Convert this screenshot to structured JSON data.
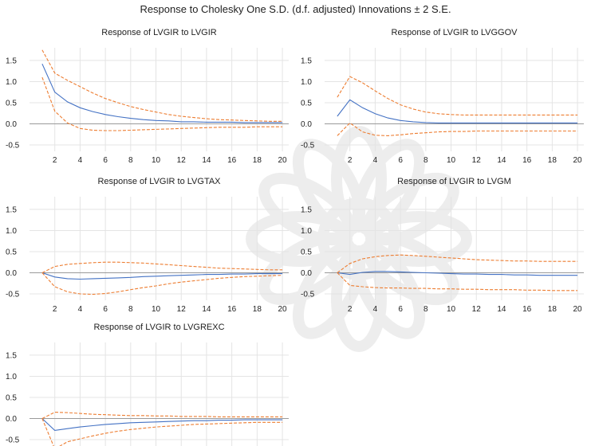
{
  "figure": {
    "title": "Response to Cholesky One S.D. (d.f. adjusted) Innovations ± 2 S.E."
  },
  "colors": {
    "response_line": "#4472c4",
    "band_line": "#ed7d31",
    "grid": "#e4e4e4",
    "zero_line": "#9a9a9a",
    "text": "#222222",
    "watermark": "#b0b0b0"
  },
  "icons": {
    "watermark": "arabesque-watermark-icon"
  },
  "chart_data": [
    {
      "type": "line",
      "title": "Response of LVGIR to LVGIR",
      "x": [
        1,
        2,
        3,
        4,
        5,
        6,
        7,
        8,
        9,
        10,
        11,
        12,
        13,
        14,
        15,
        16,
        17,
        18,
        19,
        20
      ],
      "xlim": [
        0,
        20.5
      ],
      "x_ticks": [
        "2",
        "4",
        "6",
        "8",
        "10",
        "12",
        "14",
        "16",
        "18",
        "20"
      ],
      "ylim": [
        -0.65,
        1.8
      ],
      "y_ticks": [
        "1.5",
        "1.0",
        "0.5",
        "0.0",
        "-0.5"
      ],
      "series": [
        {
          "role": "response",
          "values": [
            1.42,
            0.75,
            0.52,
            0.38,
            0.29,
            0.22,
            0.17,
            0.13,
            0.1,
            0.08,
            0.07,
            0.05,
            0.05,
            0.04,
            0.04,
            0.04,
            0.03,
            0.03,
            0.03,
            0.03
          ]
        },
        {
          "role": "upper",
          "values": [
            1.75,
            1.2,
            1.03,
            0.88,
            0.73,
            0.6,
            0.5,
            0.41,
            0.34,
            0.28,
            0.22,
            0.18,
            0.15,
            0.12,
            0.1,
            0.09,
            0.08,
            0.07,
            0.06,
            0.06
          ]
        },
        {
          "role": "lower",
          "values": [
            1.1,
            0.3,
            0.02,
            -0.11,
            -0.15,
            -0.16,
            -0.16,
            -0.15,
            -0.14,
            -0.13,
            -0.12,
            -0.11,
            -0.1,
            -0.09,
            -0.08,
            -0.08,
            -0.08,
            -0.07,
            -0.07,
            -0.07
          ]
        }
      ]
    },
    {
      "type": "line",
      "title": "Response of LVGIR to LVGGOV",
      "x": [
        1,
        2,
        3,
        4,
        5,
        6,
        7,
        8,
        9,
        10,
        11,
        12,
        13,
        14,
        15,
        16,
        17,
        18,
        19,
        20
      ],
      "xlim": [
        0,
        20.5
      ],
      "x_ticks": [
        "2",
        "4",
        "6",
        "8",
        "10",
        "12",
        "14",
        "16",
        "18",
        "20"
      ],
      "ylim": [
        -0.65,
        1.8
      ],
      "y_ticks": [
        "1.5",
        "1.0",
        "0.5",
        "0.0",
        "-0.5"
      ],
      "series": [
        {
          "role": "response",
          "values": [
            0.18,
            0.57,
            0.38,
            0.24,
            0.14,
            0.08,
            0.05,
            0.03,
            0.02,
            0.02,
            0.02,
            0.02,
            0.02,
            0.02,
            0.02,
            0.02,
            0.02,
            0.02,
            0.02,
            0.02
          ]
        },
        {
          "role": "upper",
          "values": [
            0.63,
            1.12,
            0.97,
            0.78,
            0.6,
            0.45,
            0.35,
            0.28,
            0.24,
            0.22,
            0.21,
            0.21,
            0.21,
            0.21,
            0.21,
            0.21,
            0.21,
            0.21,
            0.21,
            0.21
          ]
        },
        {
          "role": "lower",
          "values": [
            -0.28,
            0.02,
            -0.19,
            -0.27,
            -0.28,
            -0.26,
            -0.23,
            -0.21,
            -0.19,
            -0.18,
            -0.18,
            -0.17,
            -0.17,
            -0.17,
            -0.17,
            -0.17,
            -0.17,
            -0.17,
            -0.17,
            -0.17
          ]
        }
      ]
    },
    {
      "type": "line",
      "title": "Response of LVGIR to LVGTAX",
      "x": [
        1,
        2,
        3,
        4,
        5,
        6,
        7,
        8,
        9,
        10,
        11,
        12,
        13,
        14,
        15,
        16,
        17,
        18,
        19,
        20
      ],
      "xlim": [
        0,
        20.5
      ],
      "x_ticks": [
        "2",
        "4",
        "6",
        "8",
        "10",
        "12",
        "14",
        "16",
        "18",
        "20"
      ],
      "ylim": [
        -0.65,
        1.8
      ],
      "y_ticks": [
        "1.5",
        "1.0",
        "0.5",
        "0.0",
        "-0.5"
      ],
      "series": [
        {
          "role": "response",
          "values": [
            0.0,
            -0.1,
            -0.14,
            -0.15,
            -0.14,
            -0.13,
            -0.12,
            -0.11,
            -0.09,
            -0.08,
            -0.07,
            -0.06,
            -0.05,
            -0.04,
            -0.04,
            -0.03,
            -0.03,
            -0.02,
            -0.02,
            -0.02
          ]
        },
        {
          "role": "upper",
          "values": [
            0.0,
            0.15,
            0.2,
            0.22,
            0.24,
            0.25,
            0.25,
            0.24,
            0.23,
            0.21,
            0.19,
            0.17,
            0.15,
            0.13,
            0.11,
            0.1,
            0.09,
            0.08,
            0.07,
            0.07
          ]
        },
        {
          "role": "lower",
          "values": [
            0.0,
            -0.33,
            -0.45,
            -0.5,
            -0.51,
            -0.49,
            -0.45,
            -0.4,
            -0.35,
            -0.31,
            -0.26,
            -0.22,
            -0.19,
            -0.16,
            -0.13,
            -0.11,
            -0.09,
            -0.08,
            -0.07,
            -0.06
          ]
        }
      ]
    },
    {
      "type": "line",
      "title": "Response of LVGIR to LVGM",
      "x": [
        1,
        2,
        3,
        4,
        5,
        6,
        7,
        8,
        9,
        10,
        11,
        12,
        13,
        14,
        15,
        16,
        17,
        18,
        19,
        20
      ],
      "xlim": [
        0,
        20.5
      ],
      "x_ticks": [
        "2",
        "4",
        "6",
        "8",
        "10",
        "12",
        "14",
        "16",
        "18",
        "20"
      ],
      "ylim": [
        -0.65,
        1.8
      ],
      "y_ticks": [
        "1.5",
        "1.0",
        "0.5",
        "0.0",
        "-0.5"
      ],
      "series": [
        {
          "role": "response",
          "values": [
            0.0,
            -0.04,
            0.01,
            0.03,
            0.03,
            0.02,
            0.01,
            0.0,
            -0.01,
            -0.02,
            -0.03,
            -0.03,
            -0.04,
            -0.04,
            -0.05,
            -0.05,
            -0.06,
            -0.06,
            -0.06,
            -0.06
          ]
        },
        {
          "role": "upper",
          "values": [
            0.0,
            0.22,
            0.33,
            0.38,
            0.41,
            0.42,
            0.41,
            0.39,
            0.37,
            0.35,
            0.33,
            0.31,
            0.3,
            0.29,
            0.28,
            0.28,
            0.27,
            0.27,
            0.27,
            0.27
          ]
        },
        {
          "role": "lower",
          "values": [
            0.0,
            -0.3,
            -0.33,
            -0.35,
            -0.36,
            -0.36,
            -0.37,
            -0.37,
            -0.38,
            -0.38,
            -0.39,
            -0.39,
            -0.4,
            -0.4,
            -0.4,
            -0.41,
            -0.41,
            -0.42,
            -0.42,
            -0.42
          ]
        }
      ]
    },
    {
      "type": "line",
      "title": "Response of LVGIR to LVGREXC",
      "x": [
        1,
        2,
        3,
        4,
        5,
        6,
        7,
        8,
        9,
        10,
        11,
        12,
        13,
        14,
        15,
        16,
        17,
        18,
        19,
        20
      ],
      "xlim": [
        0,
        20.5
      ],
      "x_ticks": [],
      "ylim": [
        -0.65,
        1.8
      ],
      "y_ticks": [
        "1.5",
        "1.0",
        "0.5",
        "0.0",
        "-0.5"
      ],
      "series": [
        {
          "role": "response",
          "values": [
            0.0,
            -0.28,
            -0.24,
            -0.2,
            -0.17,
            -0.14,
            -0.12,
            -0.1,
            -0.09,
            -0.08,
            -0.07,
            -0.06,
            -0.05,
            -0.05,
            -0.04,
            -0.04,
            -0.03,
            -0.03,
            -0.03,
            -0.03
          ]
        },
        {
          "role": "upper",
          "values": [
            0.0,
            0.15,
            0.14,
            0.12,
            0.1,
            0.09,
            0.08,
            0.07,
            0.07,
            0.06,
            0.06,
            0.05,
            0.05,
            0.05,
            0.04,
            0.04,
            0.04,
            0.04,
            0.04,
            0.04
          ]
        },
        {
          "role": "lower",
          "values": [
            0.0,
            -0.72,
            -0.55,
            -0.48,
            -0.41,
            -0.35,
            -0.3,
            -0.26,
            -0.23,
            -0.2,
            -0.18,
            -0.16,
            -0.14,
            -0.13,
            -0.12,
            -0.11,
            -0.1,
            -0.09,
            -0.09,
            -0.09
          ]
        }
      ]
    }
  ]
}
